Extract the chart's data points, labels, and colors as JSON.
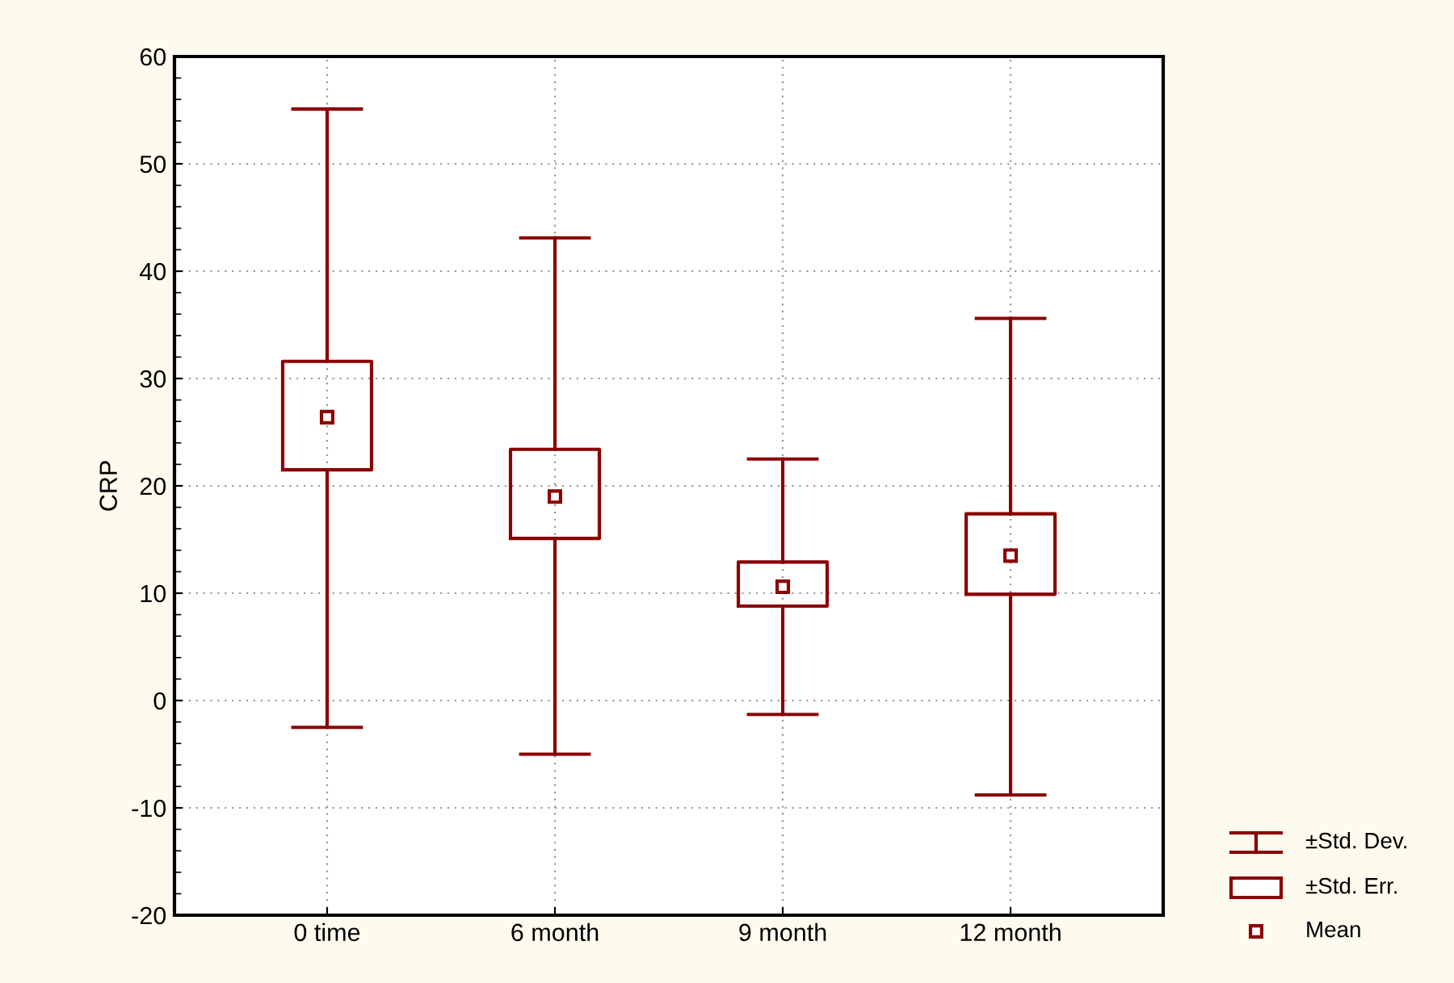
{
  "chart_data": {
    "type": "box",
    "ylabel": "CRP",
    "categories": [
      "0 time",
      "6 month",
      "9 month",
      "12 month"
    ],
    "color": "#8b0000",
    "boxes": [
      {
        "low": -2.5,
        "q1": 21.5,
        "median": 26.4,
        "q3": 31.6,
        "high": 55.1
      },
      {
        "low": -5.0,
        "q1": 15.1,
        "median": 19.0,
        "q3": 23.4,
        "high": 43.1
      },
      {
        "low": -1.3,
        "q1": 8.8,
        "median": 10.6,
        "q3": 12.9,
        "high": 22.5
      },
      {
        "low": -8.8,
        "q1": 9.9,
        "median": 13.5,
        "q3": 17.4,
        "high": 35.6
      }
    ],
    "ylim": [
      -20,
      60
    ],
    "yticks": [
      -20,
      -10,
      0,
      10,
      20,
      30,
      40,
      50,
      60
    ],
    "grid": true,
    "marker": "square",
    "annotations": [
      "±Std. Dev.",
      "±Std. Err.",
      "Mean"
    ]
  }
}
